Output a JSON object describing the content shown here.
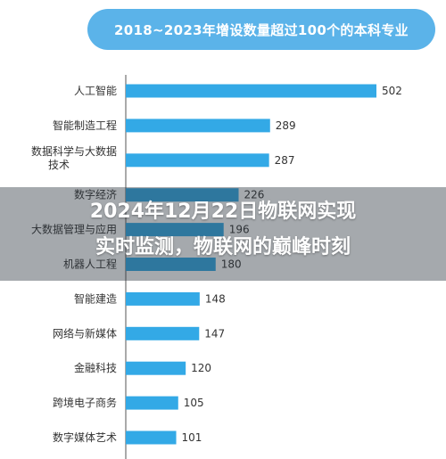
{
  "overlay": {
    "line1": "2024年12月22日物联网实现",
    "line2": "实时监测，物联网的巅峰时刻"
  },
  "colors": {
    "bar": "#33a9e6",
    "title_bg": "#5bb3e9",
    "axis": "#555555"
  },
  "chart_data": {
    "type": "bar",
    "orientation": "horizontal",
    "title": "2018~2023年增设数量超过100个的本科专业",
    "xlabel": "",
    "ylabel": "",
    "xlim": [
      0,
      520
    ],
    "grid": false,
    "categories": [
      [
        "人工智能"
      ],
      [
        "智能制造工程"
      ],
      [
        "数据科学与大数据",
        "技术"
      ],
      [
        "数字经济"
      ],
      [
        "大数据管理与应用"
      ],
      [
        "机器人工程"
      ],
      [
        "智能建造"
      ],
      [
        "网络与新媒体"
      ],
      [
        "金融科技"
      ],
      [
        "跨境电子商务"
      ],
      [
        "数字媒体艺术"
      ]
    ],
    "values": [
      502,
      289,
      287,
      226,
      196,
      180,
      148,
      147,
      120,
      105,
      101
    ]
  }
}
